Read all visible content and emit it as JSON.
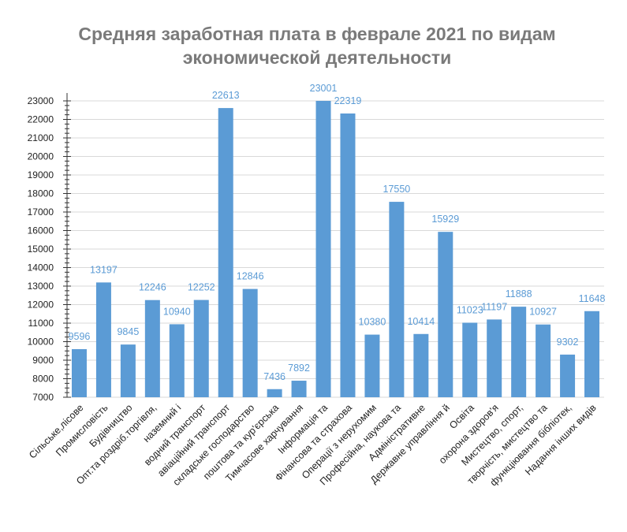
{
  "chart_data": {
    "type": "bar",
    "title": "Средняя заработная плата в феврале 2021 по видам экономической деятельности",
    "title_lines": [
      "Средняя заработная плата в феврале 2021 по видам",
      "экономической деятельности"
    ],
    "xlabel": "",
    "ylabel": "",
    "ylim": [
      7000,
      23000
    ],
    "yticks": [
      7000,
      8000,
      9000,
      10000,
      11000,
      12000,
      13000,
      14000,
      15000,
      16000,
      17000,
      18000,
      19000,
      20000,
      21000,
      22000,
      23000
    ],
    "grid": true,
    "legend": "none",
    "colors": {
      "bar": "#5b9bd5",
      "label": "#5b9bd5",
      "grid": "#d9d9d9",
      "axis": "#333333",
      "title": "#7a7a7a"
    },
    "categories": [
      "Сільське,лісове",
      "Промисловість",
      "Будівництво",
      "Опт.та роздріб.торгівля,",
      "наземний і",
      "водний транспорт",
      "авіаційний транспорт",
      "складське господарство",
      "поштова та кур'єрська",
      "Тимчасове харчування",
      "Інформація та",
      "Фінансова та страхова",
      "Операції з нерухомим",
      "Професійна, наукова та",
      "Адміністративне",
      "Державне управління й",
      "Освіта",
      "охорона здоров'я",
      "Мистецтво, спорт,",
      "творчість, мистецтво та",
      "функціювання бібліотек,",
      "Надання інших видів"
    ],
    "values": [
      9596,
      13197,
      9845,
      12246,
      10940,
      12252,
      22613,
      12846,
      7436,
      7892,
      23001,
      22319,
      10380,
      17550,
      10414,
      15929,
      11023,
      11197,
      11888,
      10927,
      9302,
      11648
    ],
    "data_labels": [
      "9596",
      "13197",
      "9845",
      "12246",
      "10940",
      "12252",
      "22613",
      "12846",
      "7436",
      "7892",
      "23001",
      "22319",
      "10380",
      "17550",
      "10414",
      "15929",
      "11023",
      "11197",
      "11888",
      "10927",
      "9302",
      "11648"
    ]
  }
}
